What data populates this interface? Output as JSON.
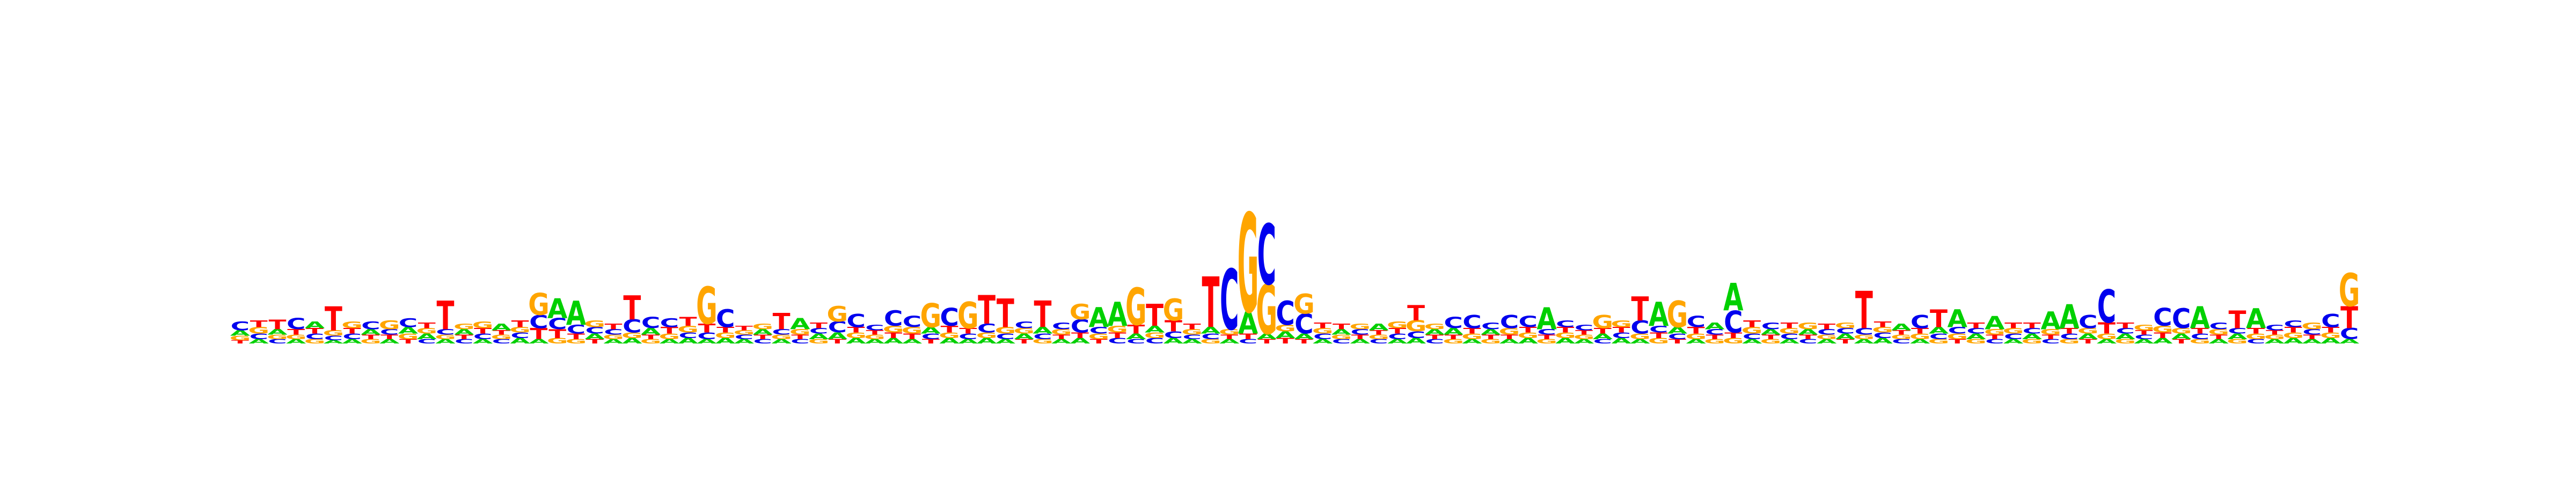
{
  "chart_data": {
    "type": "sequence-logo",
    "alphabet": [
      "A",
      "C",
      "G",
      "T"
    ],
    "colors": {
      "A": "#00d000",
      "C": "#0000ee",
      "G": "#ffa500",
      "T": "#ff0000"
    },
    "title": "",
    "xlabel": "",
    "ylabel": "",
    "ylim": [
      0,
      2
    ],
    "positions": [
      {
        "A": 0.05,
        "C": 0.08,
        "G": 0.04,
        "T": 0.03
      },
      {
        "A": 0.04,
        "C": 0.05,
        "G": 0.06,
        "T": 0.06
      },
      {
        "A": 0.05,
        "C": 0.04,
        "G": 0.04,
        "T": 0.09
      },
      {
        "A": 0.04,
        "C": 0.1,
        "G": 0.04,
        "T": 0.05
      },
      {
        "A": 0.06,
        "C": 0.05,
        "G": 0.04,
        "T": 0.05
      },
      {
        "A": 0.03,
        "C": 0.04,
        "G": 0.05,
        "T": 0.22
      },
      {
        "A": 0.04,
        "C": 0.05,
        "G": 0.06,
        "T": 0.05
      },
      {
        "A": 0.05,
        "C": 0.07,
        "G": 0.04,
        "T": 0.04
      },
      {
        "A": 0.04,
        "C": 0.05,
        "G": 0.08,
        "T": 0.04
      },
      {
        "A": 0.06,
        "C": 0.08,
        "G": 0.05,
        "T": 0.04
      },
      {
        "A": 0.05,
        "C": 0.04,
        "G": 0.05,
        "T": 0.05
      },
      {
        "A": 0.04,
        "C": 0.05,
        "G": 0.04,
        "T": 0.26
      },
      {
        "A": 0.05,
        "C": 0.04,
        "G": 0.05,
        "T": 0.04
      },
      {
        "A": 0.04,
        "C": 0.05,
        "G": 0.06,
        "T": 0.05
      },
      {
        "A": 0.06,
        "C": 0.04,
        "G": 0.04,
        "T": 0.04
      },
      {
        "A": 0.05,
        "C": 0.05,
        "G": 0.05,
        "T": 0.06
      },
      {
        "A": 0.04,
        "C": 0.12,
        "G": 0.2,
        "T": 0.1
      },
      {
        "A": 0.18,
        "C": 0.1,
        "G": 0.05,
        "T": 0.08
      },
      {
        "A": 0.22,
        "C": 0.08,
        "G": 0.04,
        "T": 0.05
      },
      {
        "A": 0.05,
        "C": 0.06,
        "G": 0.06,
        "T": 0.04
      },
      {
        "A": 0.04,
        "C": 0.05,
        "G": 0.04,
        "T": 0.05
      },
      {
        "A": 0.05,
        "C": 0.12,
        "G": 0.05,
        "T": 0.22
      },
      {
        "A": 0.06,
        "C": 0.1,
        "G": 0.04,
        "T": 0.04
      },
      {
        "A": 0.04,
        "C": 0.08,
        "G": 0.05,
        "T": 0.06
      },
      {
        "A": 0.05,
        "C": 0.05,
        "G": 0.06,
        "T": 0.08
      },
      {
        "A": 0.04,
        "C": 0.06,
        "G": 0.34,
        "T": 0.08
      },
      {
        "A": 0.05,
        "C": 0.16,
        "G": 0.05,
        "T": 0.05
      },
      {
        "A": 0.04,
        "C": 0.04,
        "G": 0.04,
        "T": 0.04
      },
      {
        "A": 0.05,
        "C": 0.04,
        "G": 0.05,
        "T": 0.04
      },
      {
        "A": 0.04,
        "C": 0.05,
        "G": 0.04,
        "T": 0.15
      },
      {
        "A": 0.1,
        "C": 0.04,
        "G": 0.05,
        "T": 0.04
      },
      {
        "A": 0.05,
        "C": 0.05,
        "G": 0.04,
        "T": 0.05
      },
      {
        "A": 0.06,
        "C": 0.1,
        "G": 0.14,
        "T": 0.04
      },
      {
        "A": 0.05,
        "C": 0.12,
        "G": 0.05,
        "T": 0.05
      },
      {
        "A": 0.04,
        "C": 0.05,
        "G": 0.04,
        "T": 0.04
      },
      {
        "A": 0.05,
        "C": 0.14,
        "G": 0.06,
        "T": 0.05
      },
      {
        "A": 0.04,
        "C": 0.1,
        "G": 0.06,
        "T": 0.05
      },
      {
        "A": 0.06,
        "C": 0.05,
        "G": 0.22,
        "T": 0.04
      },
      {
        "A": 0.05,
        "C": 0.16,
        "G": 0.05,
        "T": 0.06
      },
      {
        "A": 0.04,
        "C": 0.05,
        "G": 0.24,
        "T": 0.05
      },
      {
        "A": 0.05,
        "C": 0.08,
        "G": 0.05,
        "T": 0.26
      },
      {
        "A": 0.04,
        "C": 0.05,
        "G": 0.06,
        "T": 0.26
      },
      {
        "A": 0.05,
        "C": 0.06,
        "G": 0.05,
        "T": 0.04
      },
      {
        "A": 0.06,
        "C": 0.05,
        "G": 0.04,
        "T": 0.24
      },
      {
        "A": 0.04,
        "C": 0.06,
        "G": 0.05,
        "T": 0.04
      },
      {
        "A": 0.05,
        "C": 0.12,
        "G": 0.14,
        "T": 0.05
      },
      {
        "A": 0.18,
        "C": 0.06,
        "G": 0.05,
        "T": 0.04
      },
      {
        "A": 0.22,
        "C": 0.05,
        "G": 0.06,
        "T": 0.05
      },
      {
        "A": 0.05,
        "C": 0.04,
        "G": 0.34,
        "T": 0.08
      },
      {
        "A": 0.06,
        "C": 0.05,
        "G": 0.05,
        "T": 0.2
      },
      {
        "A": 0.05,
        "C": 0.06,
        "G": 0.2,
        "T": 0.1
      },
      {
        "A": 0.04,
        "C": 0.04,
        "G": 0.05,
        "T": 0.05
      },
      {
        "A": 0.06,
        "C": 0.05,
        "G": 0.04,
        "T": 0.46
      },
      {
        "A": 0.04,
        "C": 0.55,
        "G": 0.05,
        "T": 0.04
      },
      {
        "A": 0.2,
        "C": 0.04,
        "G": 0.9,
        "T": 0.05
      },
      {
        "A": 0.05,
        "C": 0.55,
        "G": 0.45,
        "T": 0.04
      },
      {
        "A": 0.06,
        "C": 0.22,
        "G": 0.06,
        "T": 0.05
      },
      {
        "A": 0.05,
        "C": 0.18,
        "G": 0.18,
        "T": 0.04
      },
      {
        "A": 0.04,
        "C": 0.05,
        "G": 0.05,
        "T": 0.05
      },
      {
        "A": 0.05,
        "C": 0.04,
        "G": 0.04,
        "T": 0.05
      },
      {
        "A": 0.04,
        "C": 0.05,
        "G": 0.05,
        "T": 0.04
      },
      {
        "A": 0.06,
        "C": 0.04,
        "G": 0.04,
        "T": 0.04
      },
      {
        "A": 0.04,
        "C": 0.05,
        "G": 0.06,
        "T": 0.05
      },
      {
        "A": 0.05,
        "C": 0.06,
        "G": 0.1,
        "T": 0.14
      },
      {
        "A": 0.05,
        "C": 0.04,
        "G": 0.05,
        "T": 0.04
      },
      {
        "A": 0.06,
        "C": 0.1,
        "G": 0.04,
        "T": 0.04
      },
      {
        "A": 0.04,
        "C": 0.12,
        "G": 0.05,
        "T": 0.05
      },
      {
        "A": 0.05,
        "C": 0.06,
        "G": 0.04,
        "T": 0.04
      },
      {
        "A": 0.04,
        "C": 0.12,
        "G": 0.06,
        "T": 0.04
      },
      {
        "A": 0.05,
        "C": 0.1,
        "G": 0.05,
        "T": 0.05
      },
      {
        "A": 0.2,
        "C": 0.05,
        "G": 0.04,
        "T": 0.04
      },
      {
        "A": 0.05,
        "C": 0.06,
        "G": 0.05,
        "T": 0.05
      },
      {
        "A": 0.04,
        "C": 0.05,
        "G": 0.04,
        "T": 0.04
      },
      {
        "A": 0.05,
        "C": 0.04,
        "G": 0.12,
        "T": 0.05
      },
      {
        "A": 0.05,
        "C": 0.05,
        "G": 0.06,
        "T": 0.05
      },
      {
        "A": 0.04,
        "C": 0.12,
        "G": 0.05,
        "T": 0.22
      },
      {
        "A": 0.22,
        "C": 0.06,
        "G": 0.05,
        "T": 0.05
      },
      {
        "A": 0.06,
        "C": 0.05,
        "G": 0.24,
        "T": 0.04
      },
      {
        "A": 0.04,
        "C": 0.1,
        "G": 0.05,
        "T": 0.06
      },
      {
        "A": 0.06,
        "C": 0.05,
        "G": 0.04,
        "T": 0.04
      },
      {
        "A": 0.25,
        "C": 0.2,
        "G": 0.05,
        "T": 0.05
      },
      {
        "A": 0.04,
        "C": 0.05,
        "G": 0.06,
        "T": 0.06
      },
      {
        "A": 0.05,
        "C": 0.06,
        "G": 0.04,
        "T": 0.04
      },
      {
        "A": 0.04,
        "C": 0.05,
        "G": 0.05,
        "T": 0.05
      },
      {
        "A": 0.05,
        "C": 0.04,
        "G": 0.06,
        "T": 0.04
      },
      {
        "A": 0.04,
        "C": 0.05,
        "G": 0.04,
        "T": 0.05
      },
      {
        "A": 0.05,
        "C": 0.05,
        "G": 0.05,
        "T": 0.04
      },
      {
        "A": 0.04,
        "C": 0.06,
        "G": 0.04,
        "T": 0.34
      },
      {
        "A": 0.05,
        "C": 0.05,
        "G": 0.05,
        "T": 0.05
      },
      {
        "A": 0.06,
        "C": 0.04,
        "G": 0.04,
        "T": 0.04
      },
      {
        "A": 0.04,
        "C": 0.12,
        "G": 0.05,
        "T": 0.05
      },
      {
        "A": 0.06,
        "C": 0.05,
        "G": 0.04,
        "T": 0.16
      },
      {
        "A": 0.16,
        "C": 0.06,
        "G": 0.05,
        "T": 0.04
      },
      {
        "A": 0.05,
        "C": 0.05,
        "G": 0.04,
        "T": 0.05
      },
      {
        "A": 0.12,
        "C": 0.04,
        "G": 0.05,
        "T": 0.04
      },
      {
        "A": 0.04,
        "C": 0.05,
        "G": 0.05,
        "T": 0.05
      },
      {
        "A": 0.05,
        "C": 0.05,
        "G": 0.04,
        "T": 0.05
      },
      {
        "A": 0.16,
        "C": 0.04,
        "G": 0.05,
        "T": 0.04
      },
      {
        "A": 0.22,
        "C": 0.05,
        "G": 0.04,
        "T": 0.05
      },
      {
        "A": 0.05,
        "C": 0.12,
        "G": 0.05,
        "T": 0.04
      },
      {
        "A": 0.04,
        "C": 0.3,
        "G": 0.05,
        "T": 0.1
      },
      {
        "A": 0.05,
        "C": 0.05,
        "G": 0.04,
        "T": 0.05
      },
      {
        "A": 0.04,
        "C": 0.04,
        "G": 0.05,
        "T": 0.04
      },
      {
        "A": 0.05,
        "C": 0.16,
        "G": 0.06,
        "T": 0.05
      },
      {
        "A": 0.05,
        "C": 0.18,
        "G": 0.05,
        "T": 0.04
      },
      {
        "A": 0.2,
        "C": 0.05,
        "G": 0.04,
        "T": 0.05
      },
      {
        "A": 0.04,
        "C": 0.06,
        "G": 0.05,
        "T": 0.04
      },
      {
        "A": 0.05,
        "C": 0.05,
        "G": 0.04,
        "T": 0.16
      },
      {
        "A": 0.18,
        "C": 0.04,
        "G": 0.05,
        "T": 0.05
      },
      {
        "A": 0.04,
        "C": 0.05,
        "G": 0.04,
        "T": 0.04
      },
      {
        "A": 0.05,
        "C": 0.06,
        "G": 0.05,
        "T": 0.05
      },
      {
        "A": 0.04,
        "C": 0.05,
        "G": 0.06,
        "T": 0.04
      },
      {
        "A": 0.05,
        "C": 0.12,
        "G": 0.05,
        "T": 0.05
      },
      {
        "A": 0.04,
        "C": 0.1,
        "G": 0.3,
        "T": 0.2
      }
    ]
  }
}
